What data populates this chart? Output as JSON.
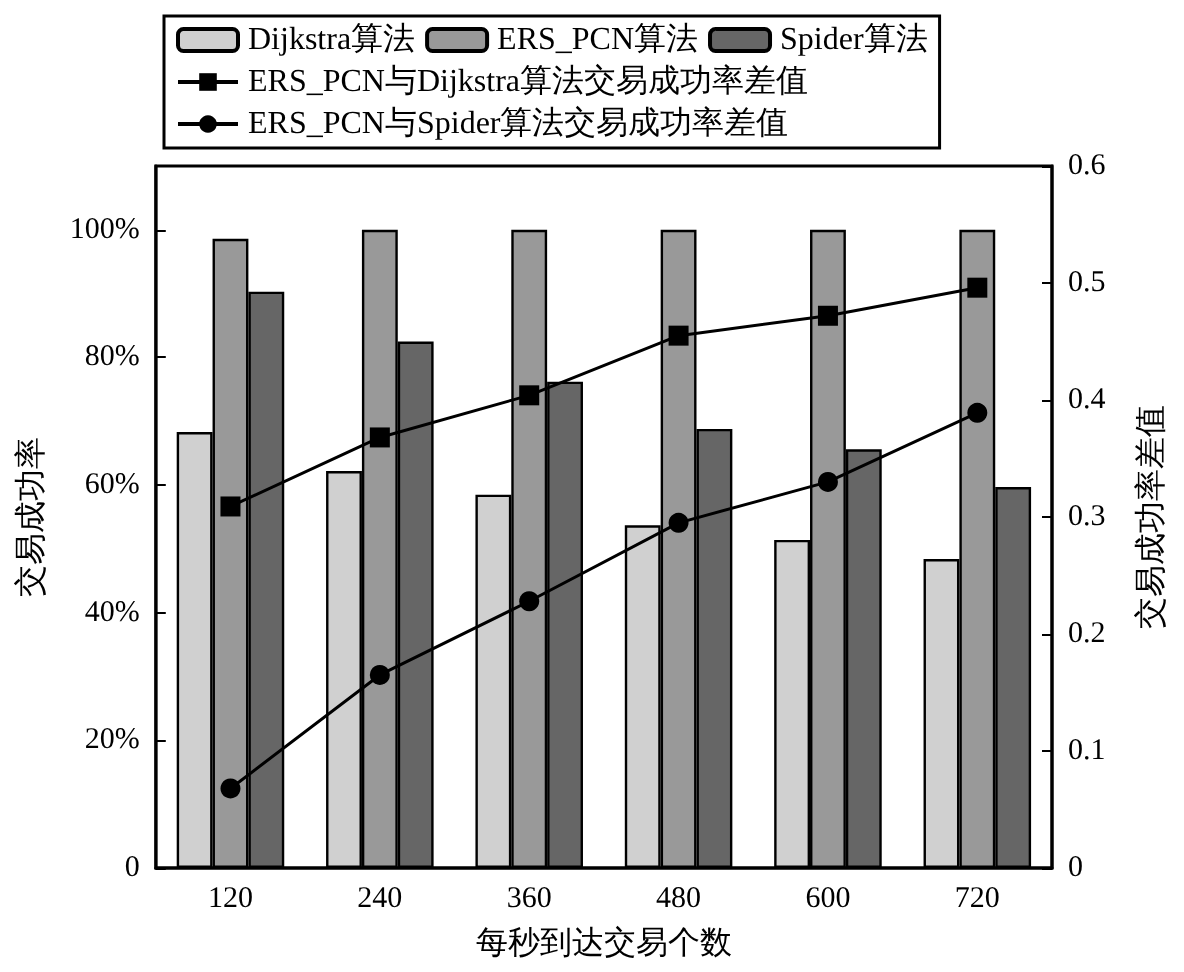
{
  "chart_data": {
    "type": "bar",
    "xlabel": "每秒到达交易个数",
    "ylabel": "交易成功率",
    "y2label": "交易成功率差值",
    "categories": [
      "120",
      "240",
      "360",
      "480",
      "600",
      "720"
    ],
    "series": [
      {
        "name": "Dijkstra算法",
        "color": "#d0d0d0",
        "values": [
          68.3,
          62.2,
          58.5,
          53.7,
          51.4,
          48.4
        ]
      },
      {
        "name": "ERS_PCN算法",
        "color": "#999999",
        "values": [
          98.6,
          100,
          100,
          100,
          100,
          100
        ]
      },
      {
        "name": "Spider算法",
        "color": "#666666",
        "values": [
          90.3,
          82.5,
          76.2,
          68.8,
          65.6,
          59.7
        ]
      },
      {
        "name": "ERS_PCN与Dijkstra算法交易成功率差值",
        "type": "line",
        "axis": "y2",
        "marker": "square",
        "color": "#000000",
        "values": [
          0.309,
          0.368,
          0.404,
          0.455,
          0.472,
          0.496
        ]
      },
      {
        "name": "ERS_PCN与Spider算法交易成功率差值",
        "type": "line",
        "axis": "y2",
        "marker": "circle",
        "color": "#000000",
        "values": [
          0.068,
          0.165,
          0.228,
          0.295,
          0.33,
          0.389
        ]
      }
    ],
    "ylim": [
      0,
      110
    ],
    "yticks": [
      0,
      {
        "value": 20,
        "label": "20%"
      },
      {
        "value": 40,
        "label": "40%"
      },
      {
        "value": 60,
        "label": "60%"
      },
      {
        "value": 80,
        "label": "80%"
      },
      {
        "value": 100,
        "label": "100%"
      }
    ],
    "y2lim": [
      0,
      0.6
    ],
    "y2ticks": [
      0,
      0.1,
      0.2,
      0.3,
      0.4,
      0.5,
      0.6
    ],
    "legend": "top",
    "grid": false
  }
}
